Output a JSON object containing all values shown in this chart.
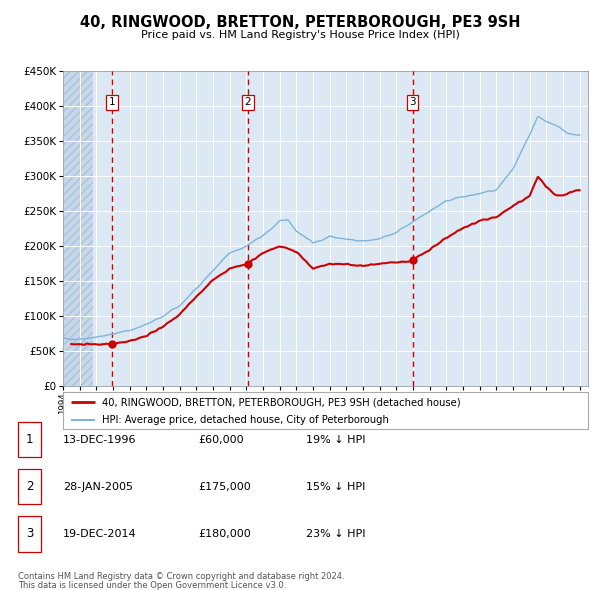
{
  "title": "40, RINGWOOD, BRETTON, PETERBOROUGH, PE3 9SH",
  "subtitle": "Price paid vs. HM Land Registry's House Price Index (HPI)",
  "ylim": [
    0,
    450000
  ],
  "yticks": [
    0,
    50000,
    100000,
    150000,
    200000,
    250000,
    300000,
    350000,
    400000,
    450000
  ],
  "xlim_start": 1994.0,
  "xlim_end": 2025.5,
  "bg_color": "#dce9f5",
  "grid_color": "#ffffff",
  "red_line_color": "#cc0000",
  "blue_line_color": "#7fb3d9",
  "vline_color": "#cc0000",
  "sale_points": [
    {
      "year": 1996.96,
      "price": 60000,
      "label": "1"
    },
    {
      "year": 2005.08,
      "price": 175000,
      "label": "2"
    },
    {
      "year": 2014.97,
      "price": 180000,
      "label": "3"
    }
  ],
  "vline_years": [
    1996.96,
    2005.08,
    2014.97
  ],
  "legend_entries": [
    "40, RINGWOOD, BRETTON, PETERBOROUGH, PE3 9SH (detached house)",
    "HPI: Average price, detached house, City of Peterborough"
  ],
  "table_rows": [
    {
      "num": "1",
      "date": "13-DEC-1996",
      "price": "£60,000",
      "hpi": "19% ↓ HPI"
    },
    {
      "num": "2",
      "date": "28-JAN-2005",
      "price": "£175,000",
      "hpi": "15% ↓ HPI"
    },
    {
      "num": "3",
      "date": "19-DEC-2014",
      "price": "£180,000",
      "hpi": "23% ↓ HPI"
    }
  ],
  "footnote1": "Contains HM Land Registry data © Crown copyright and database right 2024.",
  "footnote2": "This data is licensed under the Open Government Licence v3.0."
}
